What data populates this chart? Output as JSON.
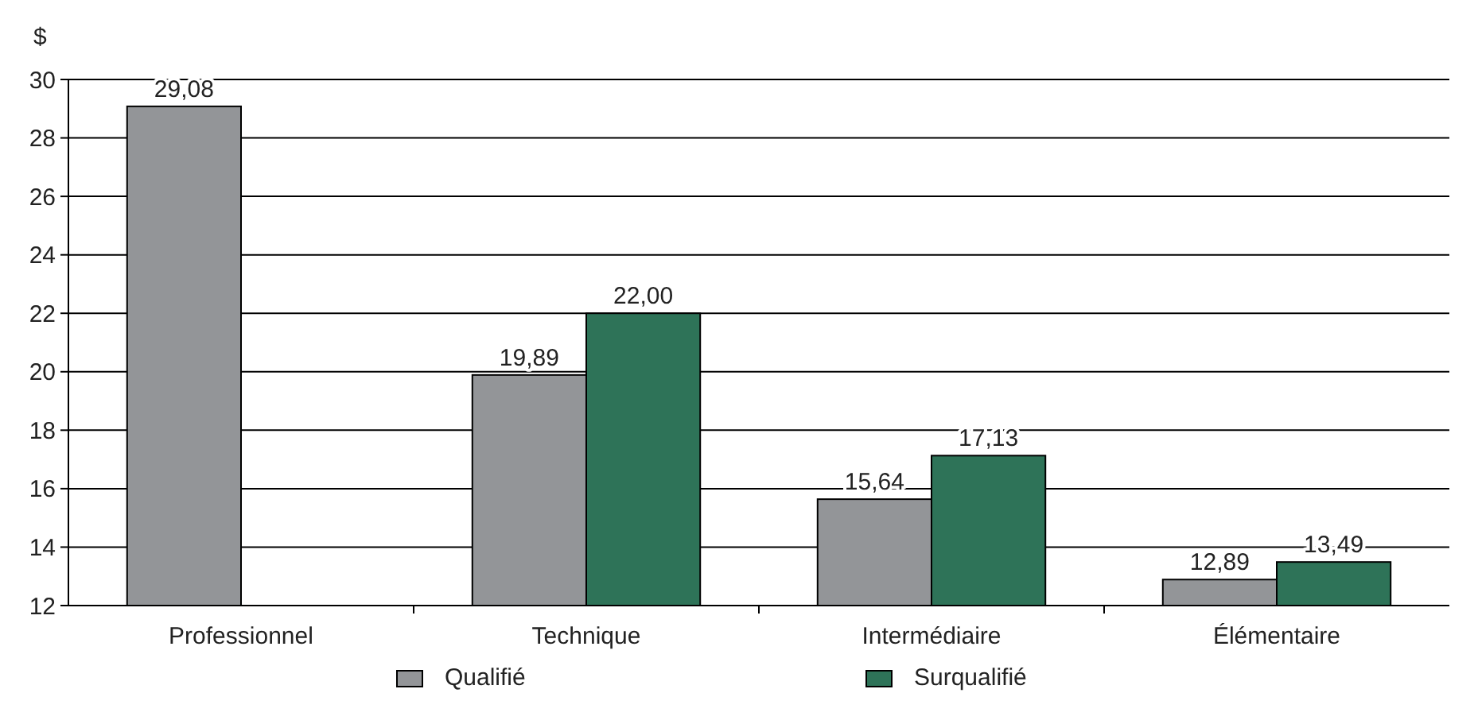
{
  "chart_data": {
    "type": "bar",
    "ylabel": "$",
    "categories": [
      "Professionnel",
      "Technique",
      "Intermédiaire",
      "Élémentaire"
    ],
    "series": [
      {
        "name": "Qualifié",
        "color": "#939598",
        "values": [
          29.08,
          19.89,
          15.64,
          12.89
        ],
        "value_labels": [
          "29,08",
          "19,89",
          "15,64",
          "12,89"
        ]
      },
      {
        "name": "Surqualifié",
        "color": "#2e7358",
        "values": [
          null,
          22.0,
          17.13,
          13.49
        ],
        "value_labels": [
          null,
          "22,00",
          "17,13",
          "13,49"
        ]
      }
    ],
    "ylim": [
      12,
      30
    ],
    "yticks": [
      12,
      14,
      16,
      18,
      20,
      22,
      24,
      26,
      28,
      30
    ],
    "grid": "y",
    "legend": "bottom"
  }
}
